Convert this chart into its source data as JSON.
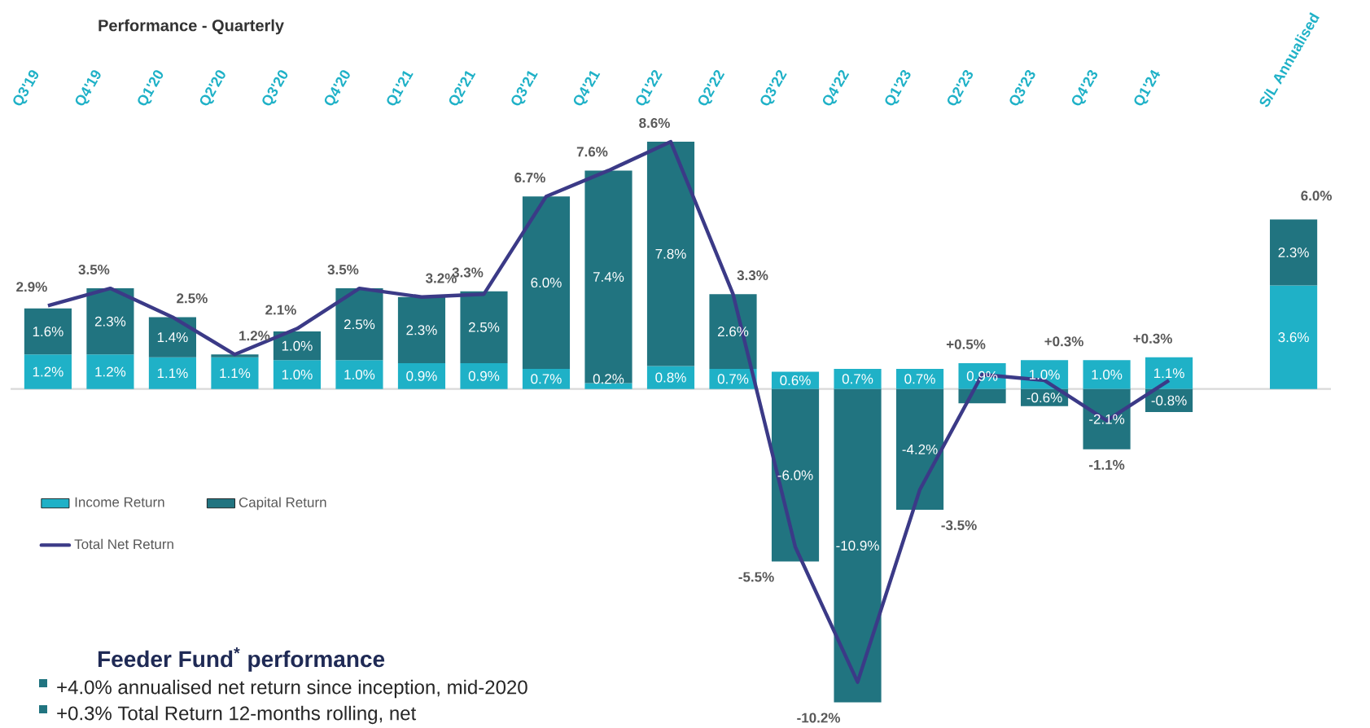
{
  "chart_data": {
    "type": "bar",
    "title": "Performance - Quarterly",
    "annotations": [
      "Feeder Fund$^{*}$ performance",
      "+4.0% annualised net return since inception, mid-2020",
      "+0.3% Total Return 12-months rolling, net"
    ],
    "categories": [
      "Q3'19",
      "Q4'19",
      "Q1'20",
      "Q2'20",
      "Q3'20",
      "Q4'20",
      "Q1'21",
      "Q2'21",
      "Q3'21",
      "Q4'21",
      "Q1'22",
      "Q2'22",
      "Q3'22",
      "Q4'22",
      "Q1'23",
      "Q2'23",
      "Q3'23",
      "Q4'23",
      "Q1'24",
      null,
      "S/L Annualised"
    ],
    "series": [
      {
        "name": "Income Return",
        "color": "#1fb1c7",
        "values": [
          1.2,
          1.2,
          1.1,
          1.1,
          1.0,
          1.0,
          0.9,
          0.9,
          0.7,
          0.2,
          0.8,
          0.7,
          0.6,
          0.7,
          0.7,
          0.9,
          1.0,
          1.0,
          1.1,
          null,
          3.6
        ],
        "value_labels": [
          "1.2%",
          "1.2%",
          "1.1%",
          "1.1%",
          "1.0%",
          "1.0%",
          "0.9%",
          "0.9%",
          "0.7%",
          "0.2%",
          "0.8%",
          "0.7%",
          "0.6%",
          "0.7%",
          "0.7%",
          "0.9%",
          "1.0%",
          "1.0%",
          "1.1%",
          null,
          "3.6%"
        ]
      },
      {
        "name": "Capital Return",
        "color": "#217480",
        "values": [
          1.6,
          2.3,
          1.4,
          0.1,
          1.0,
          2.5,
          2.3,
          2.5,
          6.0,
          7.4,
          7.8,
          2.6,
          -6.0,
          -10.9,
          -4.2,
          -0.5,
          -0.6,
          -2.1,
          -0.8,
          null,
          2.3
        ],
        "value_labels": [
          "1.6%",
          "2.3%",
          "1.4%",
          null,
          "1.0%",
          "2.5%",
          "2.3%",
          "2.5%",
          "6.0%",
          "7.4%",
          "7.8%",
          "2.6%",
          "-6.0%",
          "-10.9%",
          "-4.2%",
          null,
          "-0.6%",
          "-2.1%",
          "-0.8%",
          null,
          "2.3%"
        ]
      },
      {
        "name": "Total Net Return",
        "type": "line",
        "color": "#3b3a87",
        "values": [
          2.9,
          3.5,
          2.5,
          1.2,
          2.1,
          3.5,
          3.2,
          3.3,
          6.7,
          7.6,
          8.6,
          3.3,
          -5.5,
          -10.2,
          -3.5,
          0.5,
          0.3,
          -1.1,
          0.3,
          null,
          null
        ],
        "value_labels": [
          "2.9%",
          "3.5%",
          "2.5%",
          "1.2%",
          "2.1%",
          "3.5%",
          "3.2%",
          "3.3%",
          "6.7%",
          "7.6%",
          "8.6%",
          "3.3%",
          "-5.5%",
          "-10.2%",
          "-3.5%",
          "+0.5%",
          "+0.3%",
          "-1.1%",
          "+0.3%",
          null,
          null
        ]
      }
    ],
    "stacked": true,
    "totals": [
      null,
      null,
      null,
      null,
      null,
      null,
      null,
      null,
      null,
      null,
      null,
      null,
      null,
      null,
      null,
      null,
      null,
      null,
      null,
      null,
      "6.0%"
    ],
    "tick_labels": "x",
    "legend": "left"
  }
}
